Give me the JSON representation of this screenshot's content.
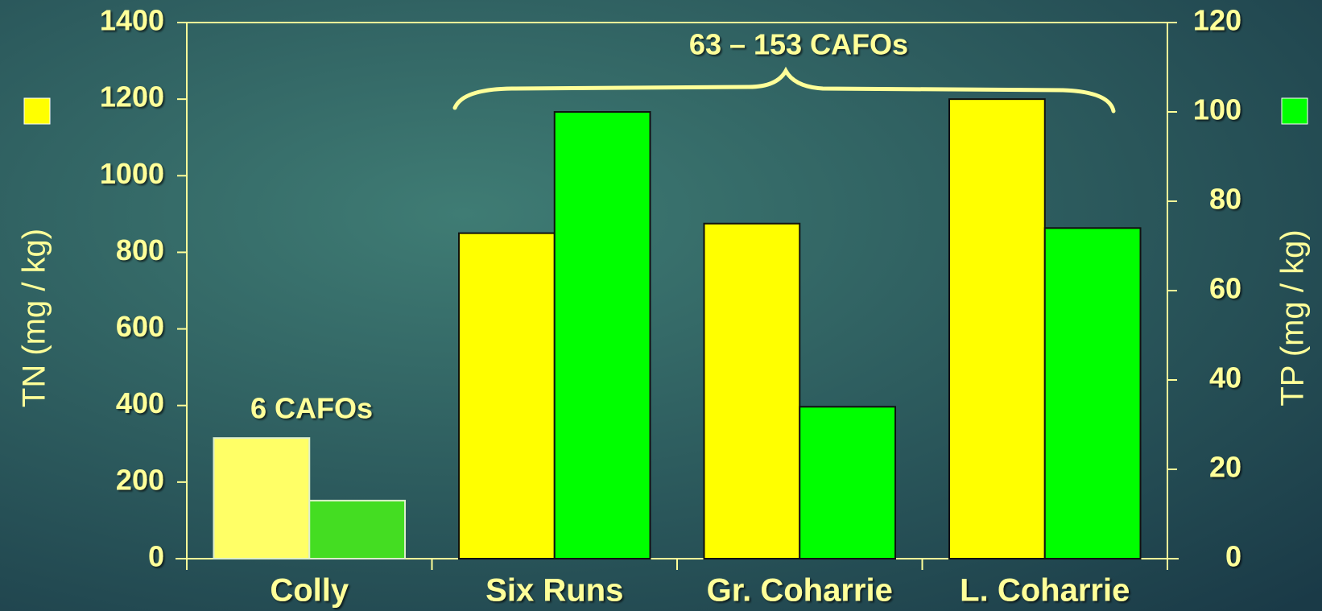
{
  "chart_data": {
    "type": "bar",
    "categories": [
      "Colly",
      "Six Runs",
      "Gr. Coharrie",
      "L. Coharrie"
    ],
    "series": [
      {
        "axis": "y",
        "color": "#ffff00",
        "colors": [
          "#ffff66",
          "#ffff00",
          "#ffff00",
          "#ffff00"
        ],
        "values": [
          315,
          850,
          875,
          1200
        ]
      },
      {
        "axis": "y2",
        "color": "#00ff00",
        "colors": [
          "#44dd22",
          "#00ff00",
          "#00ff00",
          "#00ff00"
        ],
        "values": [
          13,
          100,
          34,
          74
        ]
      }
    ],
    "ylabel": "TN (mg / kg)",
    "y2label": "TP (mg / kg)",
    "ylim": [
      0,
      1400
    ],
    "yticks": [
      0,
      200,
      400,
      600,
      800,
      1000,
      1200,
      1400
    ],
    "y2lim": [
      0,
      120
    ],
    "y2ticks": [
      0,
      20,
      40,
      60,
      80,
      100,
      120
    ],
    "annotations": [
      "6 CAFOs",
      "63 – 153 CAFOs"
    ]
  }
}
